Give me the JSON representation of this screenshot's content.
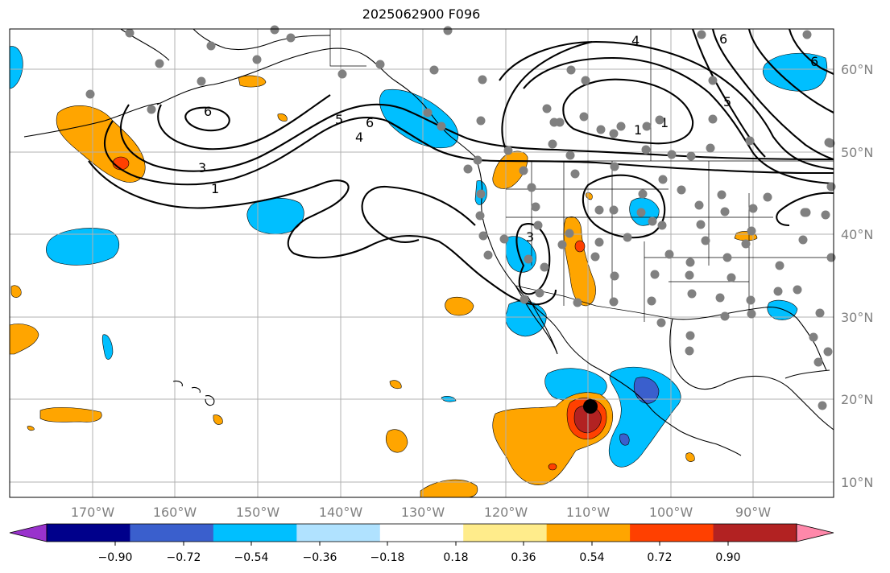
{
  "title": "2025062900 F096",
  "lat_labels": [
    "60°N",
    "50°N",
    "40°N",
    "30°N",
    "20°N",
    "10°N"
  ],
  "lon_labels": [
    "170°W",
    "160°W",
    "150°W",
    "140°W",
    "130°W",
    "120°W",
    "110°W",
    "100°W",
    "90°W"
  ],
  "contour_labels": [
    "6",
    "5",
    "6",
    "4",
    "3",
    "1",
    "4",
    "1",
    "1",
    "5",
    "6",
    "6",
    "3"
  ],
  "colorbar": {
    "tick_labels": [
      "−0.90",
      "−0.72",
      "−0.54",
      "−0.36",
      "−0.18",
      "0.18",
      "0.36",
      "0.54",
      "0.72",
      "0.90"
    ],
    "colors": [
      "#9932cc",
      "#00008b",
      "#3a5fcd",
      "#00bfff",
      "#b0e2ff",
      "#ffffff",
      "#ffec8b",
      "#ffa500",
      "#ff4000",
      "#b22222",
      "#ff88aa"
    ]
  },
  "fill_colors": {
    "neg_light": "#00bfff",
    "neg_mid": "#3a5fcd",
    "pos_light": "#ffa500",
    "pos_mid": "#ff4000",
    "pos_strong": "#b22222"
  },
  "marker_color": "#808080"
}
